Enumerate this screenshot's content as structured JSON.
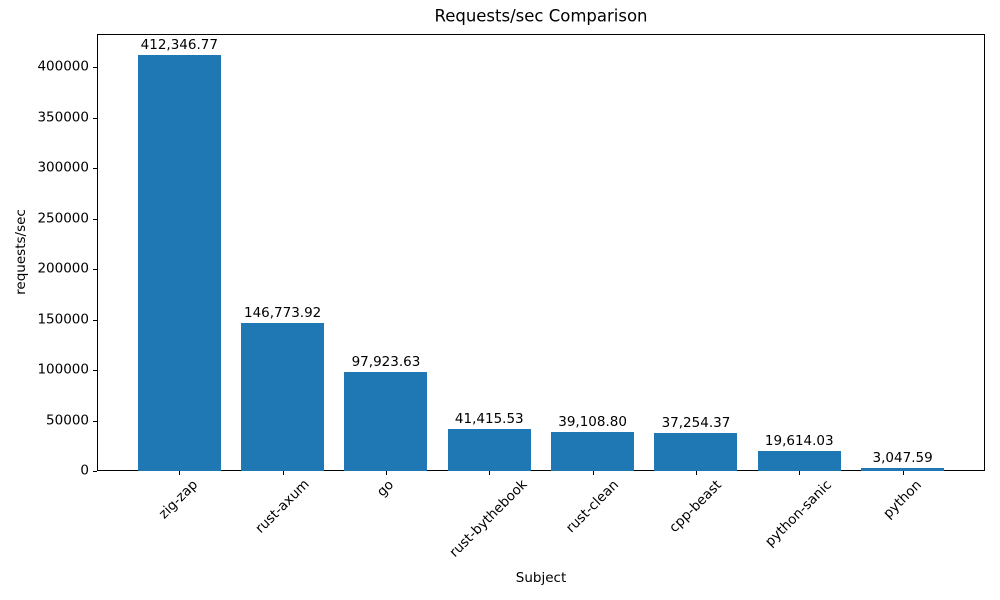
{
  "chart_data": {
    "type": "bar",
    "title": "Requests/sec Comparison",
    "xlabel": "Subject",
    "ylabel": "requests/sec",
    "categories": [
      "zig-zap",
      "rust-axum",
      "go",
      "rust-bythebook",
      "rust-clean",
      "cpp-beast",
      "python-sanic",
      "python"
    ],
    "values": [
      412346.77,
      146773.92,
      97923.63,
      41415.53,
      39108.8,
      37254.37,
      19614.03,
      3047.59
    ],
    "bar_labels": [
      "412,346.77",
      "146,773.92",
      "97,923.63",
      "41,415.53",
      "39,108.80",
      "37,254.37",
      "19,614.03",
      "3,047.59"
    ],
    "y_ticks": [
      0,
      50000,
      100000,
      150000,
      200000,
      250000,
      300000,
      350000,
      400000
    ],
    "ylim": [
      0,
      433000
    ],
    "bar_color": "#1f77b4",
    "axis_color": "#000000",
    "background_color": "#ffffff",
    "grid": false,
    "legend_position": "none",
    "xtick_rotation_deg": 45
  }
}
